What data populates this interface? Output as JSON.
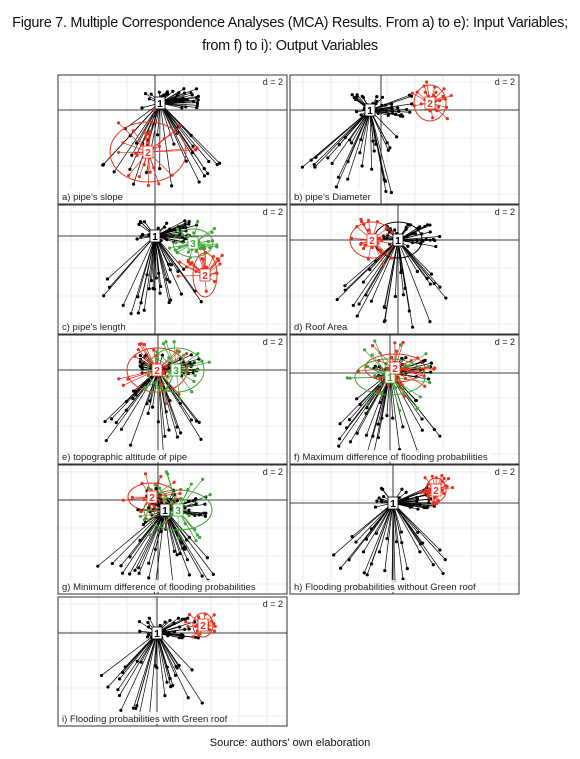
{
  "header": {
    "title_lines": [
      "Figure 7. Multiple Correspondence Analyses (MCA) Results. From a) to e): Input Variables;",
      "from f) to i): Output Variables"
    ]
  },
  "panels": [
    {
      "caption": "a) pipe's slope",
      "scale": "d = 2",
      "groups": [
        {
          "label": "1",
          "color": "#000000"
        },
        {
          "label": "2",
          "color": "#e8321e"
        }
      ]
    },
    {
      "caption": "b) pipe's Diameter",
      "scale": "d = 2",
      "groups": [
        {
          "label": "1",
          "color": "#000000"
        },
        {
          "label": "2",
          "color": "#e8321e"
        }
      ]
    },
    {
      "caption": "c) pipe's length",
      "scale": "d = 2",
      "groups": [
        {
          "label": "1",
          "color": "#000000"
        },
        {
          "label": "2",
          "color": "#e8321e"
        },
        {
          "label": "3",
          "color": "#3fa535"
        }
      ]
    },
    {
      "caption": "d) Roof Area",
      "scale": "d = 2",
      "groups": [
        {
          "label": "1",
          "color": "#000000"
        },
        {
          "label": "2",
          "color": "#e8321e"
        }
      ]
    },
    {
      "caption": "e) topographic altitude of pipe",
      "scale": "d = 2",
      "groups": [
        {
          "label": "2",
          "color": "#e8321e"
        },
        {
          "label": "3",
          "color": "#3fa535"
        }
      ]
    },
    {
      "caption": "f) Maximum difference of flooding probabilities",
      "scale": "d = 2",
      "groups": [
        {
          "label": "1",
          "color": "#3fa535"
        },
        {
          "label": "2",
          "color": "#e8321e"
        }
      ]
    },
    {
      "caption": "g) Minimum difference of flooding probabilities",
      "scale": "d = 2",
      "groups": [
        {
          "label": "2",
          "color": "#e8321e"
        },
        {
          "label": "1",
          "color": "#000000"
        },
        {
          "label": "3",
          "color": "#3fa535"
        }
      ]
    },
    {
      "caption": "h) Flooding probabilities without Green roof",
      "scale": "d = 2",
      "groups": [
        {
          "label": "1",
          "color": "#000000"
        },
        {
          "label": "2",
          "color": "#e8321e"
        }
      ]
    },
    {
      "caption": "i) Flooding probabilities with Green roof",
      "scale": "d = 2",
      "groups": [
        {
          "label": "1",
          "color": "#000000"
        },
        {
          "label": "2",
          "color": "#e8321e"
        }
      ]
    }
  ],
  "footer": {
    "source": "Source: authors' own elaboration"
  }
}
